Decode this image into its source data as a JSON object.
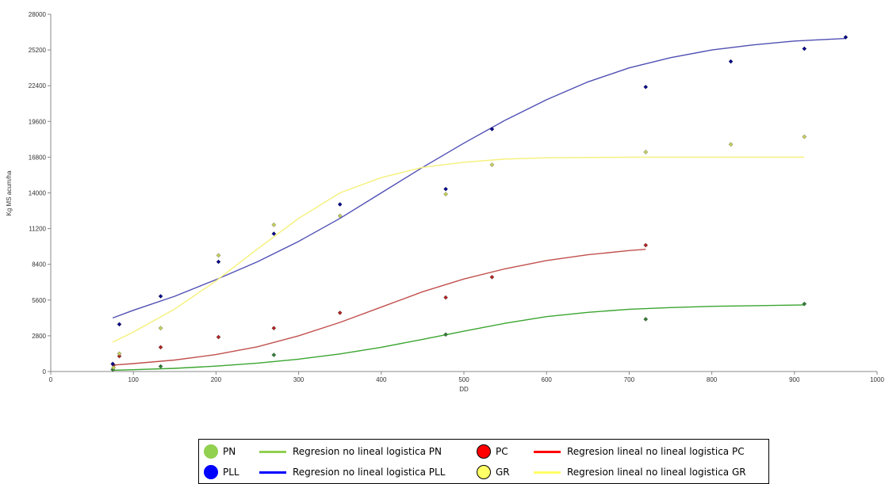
{
  "chart_data": {
    "type": "scatter",
    "xlabel": "DD",
    "ylabel": "Kg MS acum/ha",
    "xlim": [
      0,
      1000
    ],
    "ylim": [
      0,
      28000
    ],
    "x_ticks": [
      0,
      100,
      200,
      300,
      400,
      500,
      600,
      700,
      800,
      900,
      1000
    ],
    "y_ticks": [
      0,
      2800,
      5600,
      8400,
      11200,
      14000,
      16800,
      19600,
      22400,
      25200,
      28000
    ],
    "grid": false,
    "legend_position": "bottom",
    "series": [
      {
        "name": "PN",
        "kind": "points",
        "color": "#2e7d32",
        "legend_color": "#92d050",
        "x": [
          75,
          133,
          270,
          478,
          720,
          912
        ],
        "y": [
          150,
          400,
          1300,
          2900,
          4100,
          5300
        ]
      },
      {
        "name": "PC",
        "kind": "points",
        "color": "#b22222",
        "legend_color": "#ff0000",
        "x": [
          76,
          83,
          133,
          203,
          270,
          350,
          478,
          534,
          720
        ],
        "y": [
          500,
          1200,
          1900,
          2700,
          3400,
          4600,
          5800,
          7400,
          9900
        ]
      },
      {
        "name": "PLL",
        "kind": "points",
        "color": "#00008b",
        "legend_color": "#0000ff",
        "x": [
          75,
          83,
          133,
          203,
          270,
          350,
          478,
          534,
          720,
          823,
          912,
          962
        ],
        "y": [
          600,
          3700,
          5900,
          8600,
          10800,
          13100,
          14300,
          19000,
          22300,
          24300,
          25300,
          26200
        ]
      },
      {
        "name": "GR",
        "kind": "points",
        "color": "#c8d25a",
        "legend_color": "#ffff66",
        "x": [
          76,
          83,
          133,
          203,
          270,
          350,
          478,
          534,
          720,
          823,
          912
        ],
        "y": [
          300,
          1400,
          3400,
          9100,
          11500,
          12200,
          13900,
          16200,
          17200,
          17800,
          18400
        ]
      },
      {
        "name": "Regresion no lineal logistica PN",
        "kind": "line",
        "color": "#3aa52f",
        "legend_color": "#92d050",
        "x": [
          75,
          100,
          150,
          200,
          250,
          300,
          350,
          400,
          450,
          500,
          550,
          600,
          650,
          700,
          750,
          800,
          850,
          912
        ],
        "y": [
          100,
          140,
          250,
          420,
          660,
          970,
          1380,
          1900,
          2520,
          3160,
          3780,
          4300,
          4640,
          4880,
          5010,
          5110,
          5160,
          5220
        ]
      },
      {
        "name": "Regresion lineal no lineal logistica PC",
        "kind": "line",
        "color": "#c0504d",
        "legend_color": "#ff0000",
        "x": [
          75,
          100,
          150,
          200,
          250,
          300,
          350,
          400,
          450,
          500,
          550,
          600,
          650,
          700,
          720
        ],
        "y": [
          500,
          620,
          900,
          1330,
          1940,
          2800,
          3850,
          5050,
          6250,
          7250,
          8050,
          8700,
          9150,
          9480,
          9580
        ]
      },
      {
        "name": "Regresion no lineal logistica PLL",
        "kind": "line",
        "color": "#4f4fb4",
        "legend_color": "#0000ff",
        "x": [
          75,
          100,
          150,
          200,
          250,
          300,
          350,
          400,
          450,
          500,
          550,
          600,
          650,
          700,
          750,
          800,
          850,
          900,
          962
        ],
        "y": [
          4200,
          4800,
          5900,
          7200,
          8600,
          10200,
          12000,
          14000,
          16000,
          17900,
          19700,
          21300,
          22700,
          23800,
          24600,
          25200,
          25600,
          25900,
          26100
        ]
      },
      {
        "name": "Regresion lineal no lineal logistica GR",
        "kind": "line",
        "color": "#f5f07a",
        "legend_color": "#ffff66",
        "x": [
          75,
          100,
          150,
          200,
          250,
          300,
          350,
          400,
          450,
          500,
          550,
          600,
          700,
          800,
          912
        ],
        "y": [
          2300,
          3100,
          4900,
          7100,
          9600,
          12000,
          14000,
          15200,
          16000,
          16400,
          16650,
          16750,
          16800,
          16800,
          16800
        ]
      }
    ]
  },
  "legend": {
    "items": [
      {
        "label": "PN",
        "kind": "dot",
        "color": "#92d050",
        "border": "#92d050"
      },
      {
        "label": "Regresion no lineal logistica PN",
        "kind": "line",
        "color": "#92d050"
      },
      {
        "label": "PC",
        "kind": "dot",
        "color": "#ff0000",
        "border": "#000000"
      },
      {
        "label": "Regresion lineal no lineal logistica PC",
        "kind": "line",
        "color": "#ff0000"
      },
      {
        "label": "PLL",
        "kind": "dot",
        "color": "#0000ff",
        "border": "#0000ff"
      },
      {
        "label": "Regresion no lineal logistica PLL",
        "kind": "line",
        "color": "#0000ff"
      },
      {
        "label": "GR",
        "kind": "dot",
        "color": "#ffff66",
        "border": "#000000"
      },
      {
        "label": "Regresion lineal no lineal logistica GR",
        "kind": "line",
        "color": "#ffff66"
      }
    ]
  }
}
